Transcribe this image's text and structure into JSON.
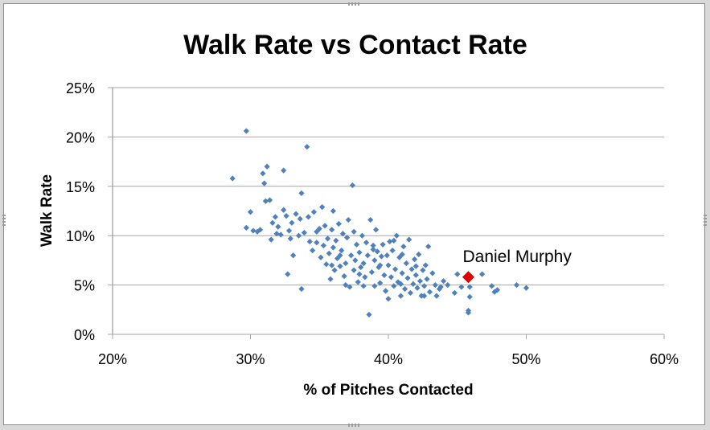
{
  "chart_data": {
    "type": "scatter",
    "title": "Walk Rate vs Contact Rate",
    "xlabel": "% of Pitches Contacted",
    "ylabel": "Walk Rate",
    "xlim": [
      20,
      60
    ],
    "ylim": [
      0,
      25
    ],
    "x_ticks": [
      "20%",
      "30%",
      "40%",
      "50%",
      "60%"
    ],
    "y_ticks": [
      "0%",
      "5%",
      "10%",
      "15%",
      "20%",
      "25%"
    ],
    "gridlines": "horizontal",
    "legend": "none",
    "colors": {
      "points": "#4f81bd",
      "highlight": "#e00000",
      "grid": "#a6a6a6"
    },
    "highlight": {
      "label": "Daniel Murphy",
      "x": 45.8,
      "y": 5.8
    },
    "series": [
      {
        "points": [
          [
            28.7,
            15.8
          ],
          [
            29.7,
            20.6
          ],
          [
            29.7,
            10.8
          ],
          [
            30.0,
            12.4
          ],
          [
            30.2,
            10.5
          ],
          [
            30.5,
            10.4
          ],
          [
            30.9,
            16.3
          ],
          [
            31.0,
            15.3
          ],
          [
            31.2,
            17.0
          ],
          [
            31.1,
            13.5
          ],
          [
            31.4,
            13.6
          ],
          [
            31.5,
            9.6
          ],
          [
            31.6,
            11.3
          ],
          [
            31.8,
            11.9
          ],
          [
            32.0,
            10.9
          ],
          [
            32.2,
            10.1
          ],
          [
            32.4,
            12.6
          ],
          [
            32.4,
            16.6
          ],
          [
            32.6,
            12.0
          ],
          [
            32.7,
            6.1
          ],
          [
            32.8,
            10.5
          ],
          [
            32.9,
            9.7
          ],
          [
            33.0,
            11.3
          ],
          [
            33.1,
            8.0
          ],
          [
            33.3,
            12.2
          ],
          [
            33.5,
            10.0
          ],
          [
            33.7,
            14.3
          ],
          [
            33.7,
            4.6
          ],
          [
            33.9,
            10.3
          ],
          [
            34.1,
            19.0
          ],
          [
            34.2,
            11.9
          ],
          [
            34.3,
            9.4
          ],
          [
            34.5,
            8.5
          ],
          [
            34.6,
            12.4
          ],
          [
            34.8,
            9.3
          ],
          [
            35.0,
            10.7
          ],
          [
            35.1,
            7.8
          ],
          [
            35.2,
            12.9
          ],
          [
            35.3,
            9.0
          ],
          [
            35.4,
            11.0
          ],
          [
            35.5,
            7.1
          ],
          [
            35.6,
            9.7
          ],
          [
            35.7,
            8.2
          ],
          [
            35.8,
            5.6
          ],
          [
            35.9,
            10.6
          ],
          [
            36.0,
            12.5
          ],
          [
            36.0,
            8.8
          ],
          [
            36.1,
            6.5
          ],
          [
            36.2,
            9.5
          ],
          [
            36.3,
            7.7
          ],
          [
            36.4,
            11.2
          ],
          [
            36.5,
            6.9
          ],
          [
            36.6,
            8.5
          ],
          [
            36.7,
            10.2
          ],
          [
            36.8,
            5.9
          ],
          [
            36.9,
            7.2
          ],
          [
            37.0,
            9.8
          ],
          [
            37.1,
            11.6
          ],
          [
            37.2,
            4.8
          ],
          [
            37.3,
            8.0
          ],
          [
            37.4,
            15.1
          ],
          [
            37.5,
            6.5
          ],
          [
            37.5,
            10.4
          ],
          [
            37.6,
            7.5
          ],
          [
            37.7,
            9.1
          ],
          [
            37.8,
            5.3
          ],
          [
            37.9,
            8.3
          ],
          [
            38.0,
            6.8
          ],
          [
            38.1,
            10.0
          ],
          [
            38.2,
            7.2
          ],
          [
            38.3,
            5.8
          ],
          [
            38.4,
            9.3
          ],
          [
            38.5,
            8.0
          ],
          [
            38.6,
            2.0
          ],
          [
            38.7,
            11.6
          ],
          [
            38.8,
            6.3
          ],
          [
            38.9,
            9.0
          ],
          [
            39.0,
            7.5
          ],
          [
            39.0,
            4.9
          ],
          [
            39.1,
            10.6
          ],
          [
            39.2,
            8.4
          ],
          [
            39.3,
            6.8
          ],
          [
            39.4,
            5.2
          ],
          [
            39.5,
            7.9
          ],
          [
            39.6,
            9.1
          ],
          [
            39.7,
            6.0
          ],
          [
            39.8,
            4.4
          ],
          [
            39.9,
            8.0
          ],
          [
            40.0,
            3.6
          ],
          [
            40.0,
            7.0
          ],
          [
            40.1,
            9.4
          ],
          [
            40.2,
            5.8
          ],
          [
            40.3,
            8.5
          ],
          [
            40.4,
            4.9
          ],
          [
            40.5,
            6.6
          ],
          [
            40.6,
            10.0
          ],
          [
            40.7,
            5.3
          ],
          [
            40.8,
            7.8
          ],
          [
            40.9,
            3.9
          ],
          [
            41.0,
            6.2
          ],
          [
            41.1,
            8.9
          ],
          [
            41.2,
            4.6
          ],
          [
            41.3,
            7.2
          ],
          [
            41.4,
            5.7
          ],
          [
            41.5,
            9.6
          ],
          [
            41.6,
            4.2
          ],
          [
            41.7,
            6.6
          ],
          [
            41.8,
            5.1
          ],
          [
            41.9,
            7.6
          ],
          [
            42.0,
            6.0
          ],
          [
            42.1,
            4.7
          ],
          [
            42.2,
            8.1
          ],
          [
            42.3,
            5.4
          ],
          [
            42.4,
            3.9
          ],
          [
            42.5,
            6.5
          ],
          [
            42.6,
            4.9
          ],
          [
            42.7,
            7.0
          ],
          [
            42.8,
            5.6
          ],
          [
            42.9,
            8.9
          ],
          [
            43.0,
            4.3
          ],
          [
            43.2,
            6.2
          ],
          [
            43.4,
            5.0
          ],
          [
            43.5,
            3.9
          ],
          [
            43.7,
            4.6
          ],
          [
            44.0,
            5.4
          ],
          [
            44.3,
            5.0
          ],
          [
            44.8,
            4.2
          ],
          [
            45.0,
            6.1
          ],
          [
            45.3,
            4.8
          ],
          [
            45.8,
            2.4
          ],
          [
            45.8,
            2.2
          ],
          [
            45.9,
            3.8
          ],
          [
            45.9,
            4.8
          ],
          [
            46.8,
            6.1
          ],
          [
            47.5,
            4.9
          ],
          [
            47.7,
            4.3
          ],
          [
            47.9,
            4.5
          ],
          [
            49.3,
            5.0
          ],
          [
            50.0,
            4.7
          ],
          [
            38.9,
            8.6
          ],
          [
            40.4,
            9.5
          ],
          [
            36.5,
            8.0
          ],
          [
            37.9,
            6.1
          ],
          [
            39.4,
            7.0
          ],
          [
            35.9,
            7.0
          ],
          [
            41.0,
            8.1
          ],
          [
            42.0,
            6.9
          ],
          [
            43.8,
            4.8
          ],
          [
            34.8,
            10.4
          ],
          [
            33.6,
            11.7
          ],
          [
            31.9,
            10.2
          ],
          [
            30.7,
            10.6
          ],
          [
            36.9,
            5.0
          ],
          [
            38.2,
            4.9
          ],
          [
            40.9,
            5.1
          ],
          [
            42.6,
            3.9
          ]
        ]
      }
    ]
  }
}
